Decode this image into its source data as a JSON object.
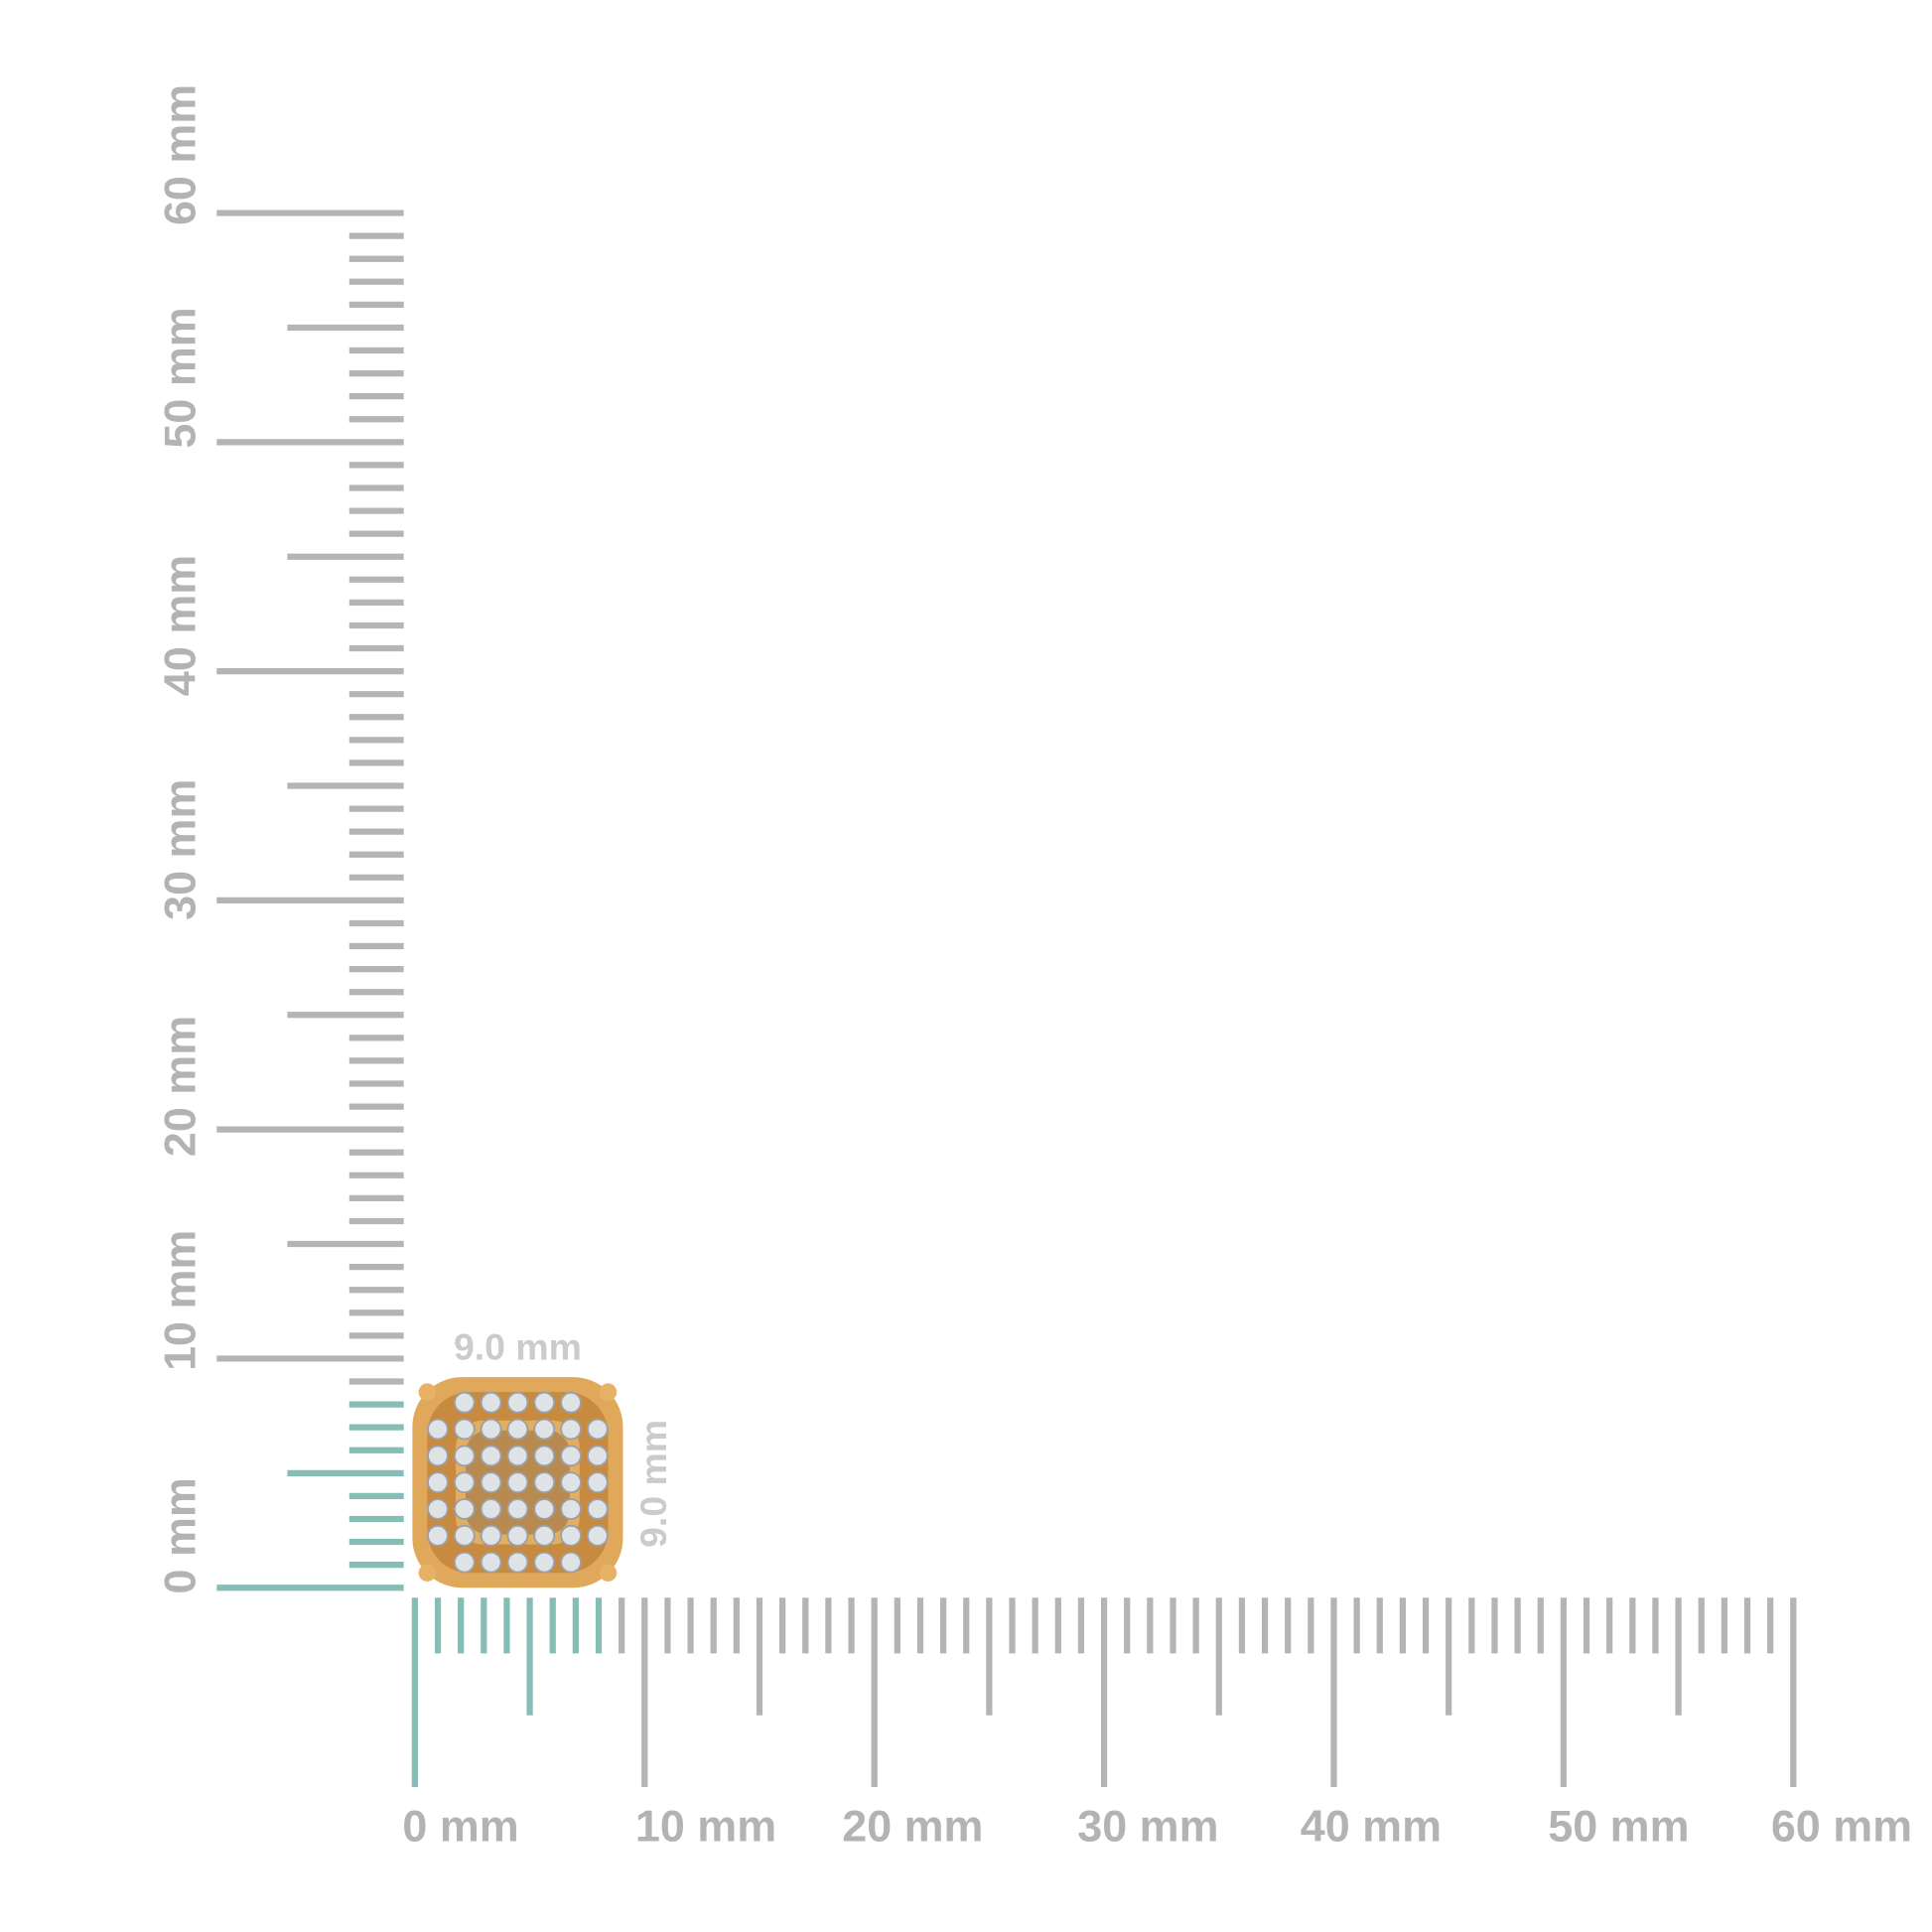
{
  "horizontal_ruler": {
    "labels": [
      "0 mm",
      "10 mm",
      "20 mm",
      "30 mm",
      "40 mm",
      "50 mm",
      "60 mm"
    ]
  },
  "vertical_ruler": {
    "labels": [
      "0 mm",
      "10 mm",
      "20 mm",
      "30 mm",
      "40 mm",
      "50 mm",
      "60 mm"
    ]
  },
  "dimensions": {
    "width": "9.0 mm",
    "height": "9.0 mm"
  }
}
